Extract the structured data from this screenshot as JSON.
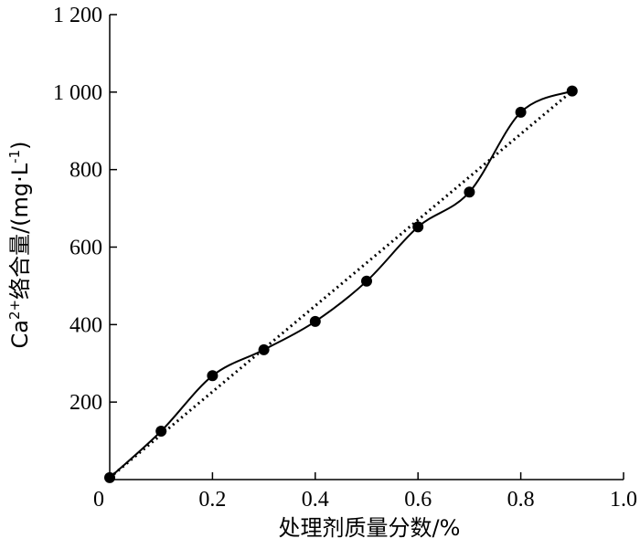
{
  "chart_data": {
    "type": "line",
    "ylabel_parts": {
      "main": "Ca",
      "sup1": "2+",
      "mid": "络合量/(mg·L",
      "sup2": "-1",
      "end": ")"
    },
    "xlabel": "处理剂质量分数/%",
    "xlim": [
      0,
      1.0
    ],
    "ylim": [
      0,
      1200
    ],
    "x_ticks": [
      {
        "v": 0,
        "label": "0"
      },
      {
        "v": 0.2,
        "label": "0.2"
      },
      {
        "v": 0.4,
        "label": "0.4"
      },
      {
        "v": 0.6,
        "label": "0.6"
      },
      {
        "v": 0.8,
        "label": "0.8"
      },
      {
        "v": 1.0,
        "label": "1.0"
      }
    ],
    "y_ticks": [
      {
        "v": 200,
        "label": "200"
      },
      {
        "v": 400,
        "label": "400"
      },
      {
        "v": 600,
        "label": "600"
      },
      {
        "v": 800,
        "label": "800"
      },
      {
        "v": 1000,
        "label": "1 000"
      },
      {
        "v": 1200,
        "label": "1 200"
      }
    ],
    "series": [
      {
        "style": "solid-smooth-with-markers",
        "x": [
          0.0,
          0.1,
          0.2,
          0.3,
          0.4,
          0.5,
          0.6,
          0.7,
          0.8,
          0.9
        ],
        "values": [
          5,
          125,
          268,
          335,
          408,
          512,
          652,
          742,
          948,
          1003
        ]
      },
      {
        "style": "dotted-linear-fit",
        "x": [
          0.0,
          0.9
        ],
        "values": [
          5,
          1003
        ]
      }
    ],
    "grid": false,
    "legend": "none"
  }
}
